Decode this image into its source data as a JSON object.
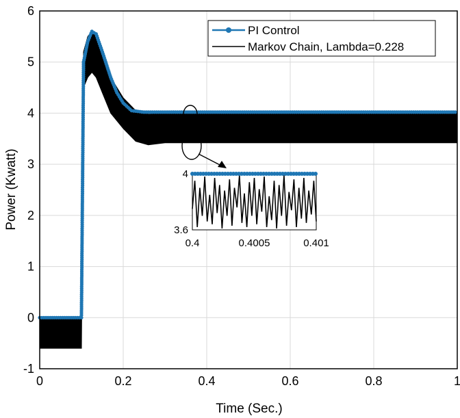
{
  "chart_data": {
    "type": "line",
    "xlabel": "Time (Sec.)",
    "ylabel": "Power (Kwatt)",
    "xlim": [
      0,
      1
    ],
    "ylim": [
      -1,
      6
    ],
    "x_ticks": [
      "0",
      "0.2",
      "0.4",
      "0.6",
      "0.8",
      "1"
    ],
    "y_ticks": [
      "-1",
      "0",
      "1",
      "2",
      "3",
      "4",
      "5",
      "6"
    ],
    "grid": true,
    "legend_position": "top-right",
    "series": [
      {
        "name": "PI Control",
        "color": "#1f77b4",
        "marker": "circle",
        "points": [
          [
            0,
            0
          ],
          [
            0.1,
            0
          ],
          [
            0.1,
            0.05
          ],
          [
            0.105,
            5.0
          ],
          [
            0.115,
            5.4
          ],
          [
            0.125,
            5.6
          ],
          [
            0.135,
            5.55
          ],
          [
            0.15,
            5.2
          ],
          [
            0.17,
            4.7
          ],
          [
            0.185,
            4.4
          ],
          [
            0.2,
            4.2
          ],
          [
            0.22,
            4.05
          ],
          [
            0.25,
            4.02
          ],
          [
            0.3,
            4.02
          ],
          [
            0.4,
            4.02
          ],
          [
            0.5,
            4.02
          ],
          [
            0.6,
            4.02
          ],
          [
            0.7,
            4.02
          ],
          [
            0.8,
            4.02
          ],
          [
            0.9,
            4.02
          ],
          [
            1.0,
            4.02
          ]
        ]
      },
      {
        "name": "Markov Chain, Lambda=0.228",
        "color": "#000000",
        "band_low": [
          [
            0,
            -0.6
          ],
          [
            0.1,
            -0.6
          ],
          [
            0.105,
            4.5
          ],
          [
            0.115,
            4.7
          ],
          [
            0.125,
            4.8
          ],
          [
            0.135,
            4.7
          ],
          [
            0.15,
            4.4
          ],
          [
            0.17,
            4.0
          ],
          [
            0.2,
            3.7
          ],
          [
            0.23,
            3.45
          ],
          [
            0.26,
            3.38
          ],
          [
            0.3,
            3.42
          ],
          [
            0.4,
            3.42
          ],
          [
            0.6,
            3.42
          ],
          [
            0.8,
            3.42
          ],
          [
            1.0,
            3.42
          ]
        ],
        "band_high": [
          [
            0,
            0
          ],
          [
            0.1,
            0
          ],
          [
            0.105,
            5.2
          ],
          [
            0.115,
            5.5
          ],
          [
            0.125,
            5.6
          ],
          [
            0.135,
            5.55
          ],
          [
            0.15,
            5.2
          ],
          [
            0.17,
            4.7
          ],
          [
            0.2,
            4.3
          ],
          [
            0.23,
            4.05
          ],
          [
            0.26,
            3.98
          ],
          [
            0.3,
            4.0
          ],
          [
            0.4,
            4.0
          ],
          [
            0.6,
            4.0
          ],
          [
            0.8,
            4.0
          ],
          [
            1.0,
            4.0
          ]
        ]
      }
    ],
    "inset": {
      "xlim": [
        0.4,
        0.401
      ],
      "ylim": [
        3.6,
        4.0
      ],
      "x_ticks": [
        "0.4",
        "0.4005",
        "0.401"
      ],
      "y_ticks": [
        "3.6",
        "4"
      ],
      "pi_level": 4.0,
      "markov_points": [
        [
          0.4,
          3.75
        ],
        [
          0.40002,
          3.95
        ],
        [
          0.40004,
          3.62
        ],
        [
          0.40006,
          3.9
        ],
        [
          0.40008,
          3.7
        ],
        [
          0.4001,
          3.98
        ],
        [
          0.40012,
          3.66
        ],
        [
          0.40014,
          3.85
        ],
        [
          0.40016,
          3.64
        ],
        [
          0.40018,
          3.97
        ],
        [
          0.4002,
          3.72
        ],
        [
          0.40022,
          3.92
        ],
        [
          0.40024,
          3.61
        ],
        [
          0.40026,
          3.88
        ],
        [
          0.40028,
          3.7
        ],
        [
          0.4003,
          3.96
        ],
        [
          0.40032,
          3.63
        ],
        [
          0.40034,
          3.9
        ],
        [
          0.40036,
          3.76
        ],
        [
          0.40038,
          3.99
        ],
        [
          0.4004,
          3.65
        ],
        [
          0.40042,
          3.86
        ],
        [
          0.40044,
          3.62
        ],
        [
          0.40046,
          3.94
        ],
        [
          0.40048,
          3.7
        ],
        [
          0.4005,
          3.97
        ],
        [
          0.40052,
          3.64
        ],
        [
          0.40054,
          3.89
        ],
        [
          0.40056,
          3.73
        ],
        [
          0.40058,
          3.98
        ],
        [
          0.4006,
          3.62
        ],
        [
          0.40062,
          3.84
        ],
        [
          0.40064,
          3.67
        ],
        [
          0.40066,
          3.95
        ],
        [
          0.40068,
          3.61
        ],
        [
          0.4007,
          3.92
        ],
        [
          0.40072,
          3.7
        ],
        [
          0.40074,
          3.99
        ],
        [
          0.40076,
          3.63
        ],
        [
          0.40078,
          3.87
        ],
        [
          0.4008,
          3.74
        ],
        [
          0.40082,
          3.96
        ],
        [
          0.40084,
          3.62
        ],
        [
          0.40086,
          3.9
        ],
        [
          0.40088,
          3.68
        ],
        [
          0.4009,
          3.97
        ],
        [
          0.40092,
          3.65
        ],
        [
          0.40094,
          3.88
        ],
        [
          0.40096,
          3.71
        ],
        [
          0.40098,
          3.95
        ],
        [
          0.401,
          3.66
        ]
      ]
    }
  }
}
